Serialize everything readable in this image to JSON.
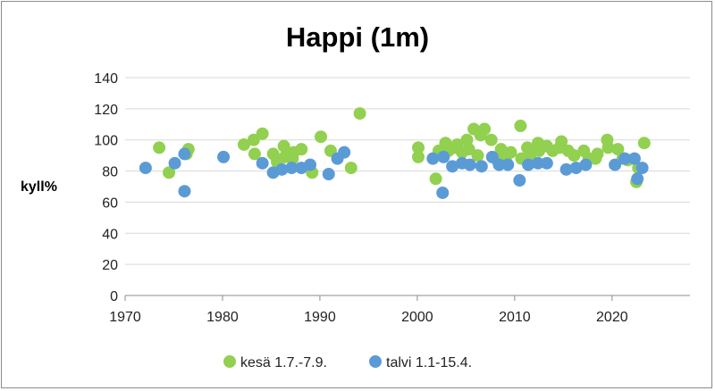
{
  "chart_data": {
    "type": "scatter",
    "title": "Happi (1m)",
    "ylabel": "kyll%",
    "xlabel": "",
    "xlim": [
      1970,
      2028
    ],
    "ylim": [
      0,
      140
    ],
    "x_ticks": [
      1970,
      1980,
      1990,
      2000,
      2010,
      2020
    ],
    "y_ticks": [
      0,
      20,
      40,
      60,
      80,
      100,
      120,
      140
    ],
    "grid": "horizontal",
    "legend_position": "bottom",
    "series": [
      {
        "name": "kesä 1.7.-7.9.",
        "color": "#92d050",
        "points": [
          [
            1973.5,
            95
          ],
          [
            1974.5,
            79
          ],
          [
            1976.5,
            94
          ],
          [
            1976.3,
            91
          ],
          [
            1982.2,
            97
          ],
          [
            1983.2,
            100
          ],
          [
            1983.3,
            91
          ],
          [
            1984.1,
            104
          ],
          [
            1985.2,
            91
          ],
          [
            1985.6,
            86
          ],
          [
            1986.3,
            96
          ],
          [
            1986.4,
            89
          ],
          [
            1987.2,
            88
          ],
          [
            1987.3,
            92
          ],
          [
            1988.1,
            94
          ],
          [
            1989.2,
            79
          ],
          [
            1990.1,
            102
          ],
          [
            1991.1,
            93
          ],
          [
            1993.2,
            82
          ],
          [
            1994.1,
            117
          ],
          [
            2000.1,
            95
          ],
          [
            2000.1,
            89
          ],
          [
            2001.9,
            75
          ],
          [
            2002.2,
            93
          ],
          [
            2002.9,
            98
          ],
          [
            2003.2,
            93
          ],
          [
            2003.9,
            95
          ],
          [
            2004.1,
            97
          ],
          [
            2004.6,
            92
          ],
          [
            2005.1,
            100
          ],
          [
            2005.3,
            94
          ],
          [
            2005.8,
            107
          ],
          [
            2006.2,
            90
          ],
          [
            2006.5,
            103
          ],
          [
            2006.9,
            107
          ],
          [
            2007.6,
            100
          ],
          [
            2008.2,
            87
          ],
          [
            2008.6,
            94
          ],
          [
            2009.2,
            90
          ],
          [
            2009.6,
            92
          ],
          [
            2010.6,
            109
          ],
          [
            2010.7,
            88
          ],
          [
            2011.3,
            95
          ],
          [
            2011.6,
            90
          ],
          [
            2012.4,
            98
          ],
          [
            2012.5,
            93
          ],
          [
            2013.3,
            96
          ],
          [
            2013.9,
            93
          ],
          [
            2014.6,
            95
          ],
          [
            2014.8,
            99
          ],
          [
            2015.5,
            93
          ],
          [
            2016.1,
            90
          ],
          [
            2017.1,
            93
          ],
          [
            2017.6,
            88
          ],
          [
            2018.3,
            88
          ],
          [
            2018.5,
            91
          ],
          [
            2019.5,
            100
          ],
          [
            2019.6,
            95
          ],
          [
            2020.6,
            94
          ],
          [
            2021.1,
            88
          ],
          [
            2021.6,
            87
          ],
          [
            2022.5,
            73
          ],
          [
            2022.7,
            82
          ],
          [
            2023.3,
            98
          ]
        ]
      },
      {
        "name": "talvi 1.1-15.4.",
        "color": "#5b9bd5",
        "points": [
          [
            1972.1,
            82
          ],
          [
            1975.1,
            85
          ],
          [
            1976.1,
            67
          ],
          [
            1976.1,
            91
          ],
          [
            1980.1,
            89
          ],
          [
            1984.1,
            85
          ],
          [
            1985.2,
            79
          ],
          [
            1986.1,
            81
          ],
          [
            1987.1,
            82
          ],
          [
            1988.1,
            82
          ],
          [
            1989.0,
            84
          ],
          [
            1990.9,
            78
          ],
          [
            1991.8,
            88
          ],
          [
            1992.5,
            92
          ],
          [
            2001.6,
            88
          ],
          [
            2002.7,
            89
          ],
          [
            2002.6,
            66
          ],
          [
            2003.6,
            83
          ],
          [
            2004.6,
            85
          ],
          [
            2005.4,
            84
          ],
          [
            2006.6,
            83
          ],
          [
            2007.7,
            89
          ],
          [
            2008.4,
            84
          ],
          [
            2009.3,
            84
          ],
          [
            2010.5,
            74
          ],
          [
            2011.4,
            84
          ],
          [
            2012.4,
            85
          ],
          [
            2013.3,
            85
          ],
          [
            2015.3,
            81
          ],
          [
            2016.3,
            82
          ],
          [
            2017.3,
            84
          ],
          [
            2020.3,
            84
          ],
          [
            2021.3,
            88
          ],
          [
            2022.3,
            88
          ],
          [
            2022.6,
            75
          ],
          [
            2023.1,
            82
          ]
        ]
      }
    ]
  }
}
